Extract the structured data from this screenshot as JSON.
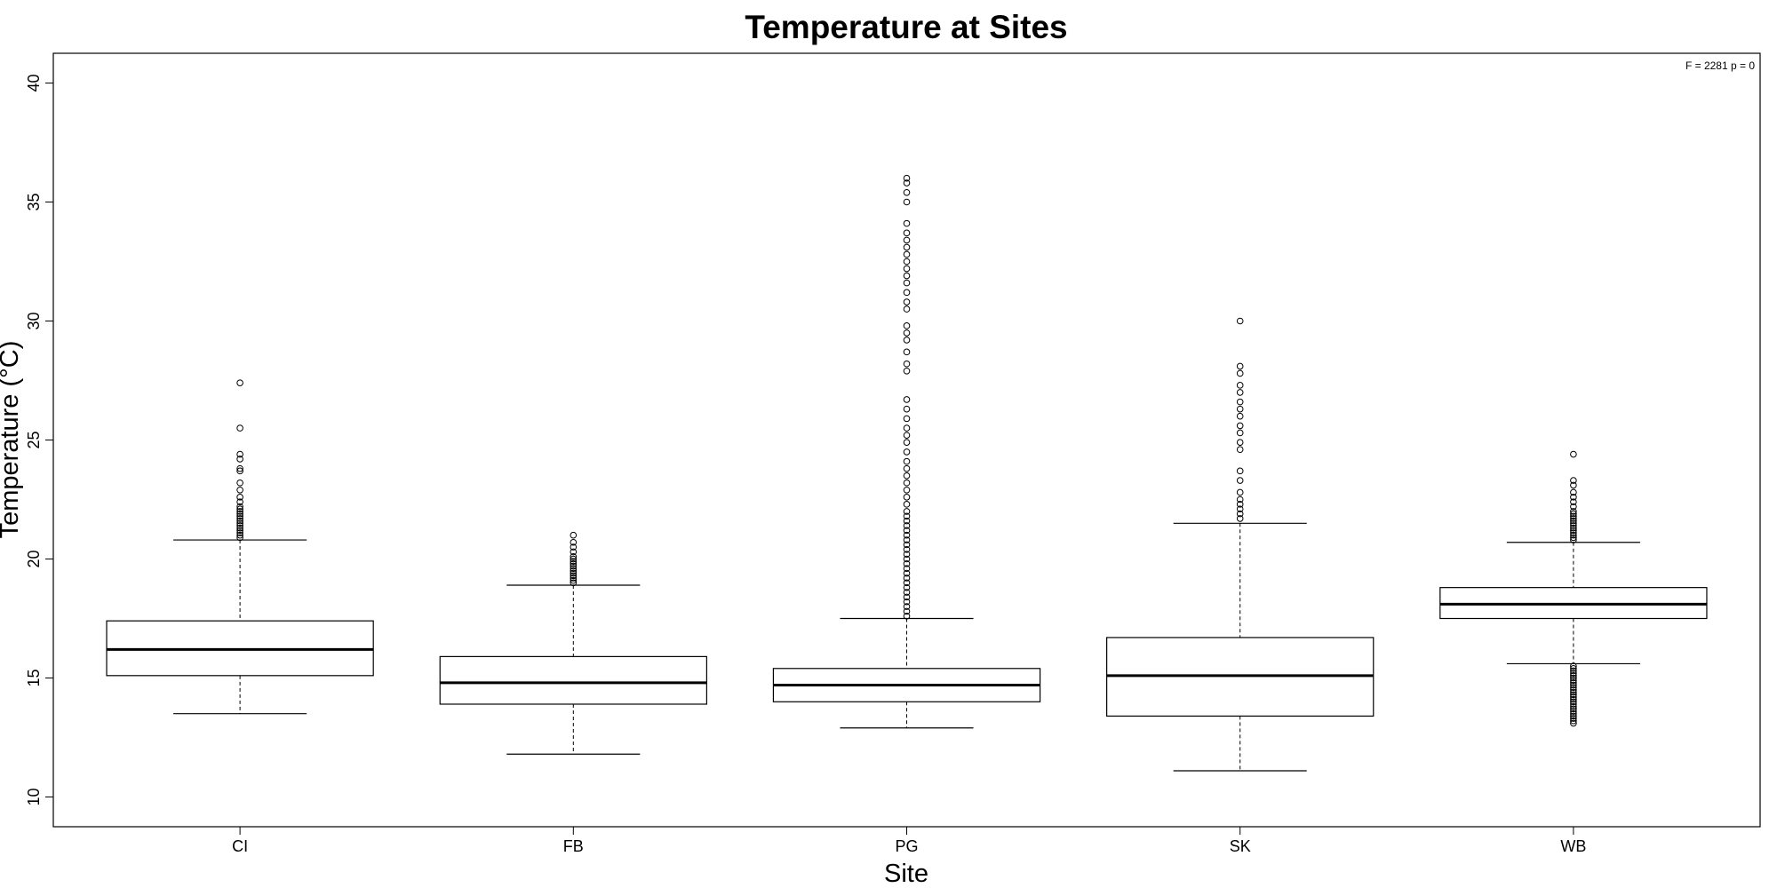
{
  "chart_data": {
    "type": "box",
    "title": "Temperature at Sites",
    "xlabel": "Site",
    "ylabel": "Temperature (°C)",
    "annotation": "F = 2281 p = 0",
    "ylim": [
      8.75,
      41.25
    ],
    "yticks": [
      10,
      15,
      20,
      25,
      30,
      35,
      40
    ],
    "categories": [
      "CI",
      "FB",
      "PG",
      "SK",
      "WB"
    ],
    "boxes": [
      {
        "site": "CI",
        "whisker_low": 13.5,
        "q1": 15.1,
        "median": 16.2,
        "q3": 17.4,
        "whisker_high": 20.8,
        "outliers": [
          20.9,
          21.0,
          21.1,
          21.2,
          21.3,
          21.4,
          21.5,
          21.6,
          21.7,
          21.8,
          21.9,
          22.0,
          22.1,
          22.2,
          22.4,
          22.6,
          22.9,
          23.2,
          23.7,
          23.8,
          24.2,
          24.4,
          25.5,
          27.4
        ]
      },
      {
        "site": "FB",
        "whisker_low": 11.8,
        "q1": 13.9,
        "median": 14.8,
        "q3": 15.9,
        "whisker_high": 18.9,
        "outliers": [
          19.0,
          19.1,
          19.2,
          19.3,
          19.4,
          19.5,
          19.6,
          19.7,
          19.8,
          19.9,
          20.0,
          20.1,
          20.3,
          20.5,
          20.7,
          21.0
        ]
      },
      {
        "site": "PG",
        "whisker_low": 12.9,
        "q1": 14.0,
        "median": 14.7,
        "q3": 15.4,
        "whisker_high": 17.5,
        "outliers": [
          17.6,
          17.8,
          18.0,
          18.2,
          18.4,
          18.6,
          18.8,
          19.0,
          19.2,
          19.4,
          19.6,
          19.8,
          20.0,
          20.2,
          20.4,
          20.6,
          20.8,
          21.0,
          21.2,
          21.4,
          21.6,
          21.8,
          22.0,
          22.3,
          22.6,
          22.9,
          23.2,
          23.5,
          23.8,
          24.1,
          24.5,
          24.9,
          25.2,
          25.5,
          25.9,
          26.3,
          26.7,
          27.9,
          28.2,
          28.7,
          29.2,
          29.5,
          29.8,
          30.5,
          30.8,
          31.2,
          31.6,
          31.9,
          32.2,
          32.5,
          32.8,
          33.1,
          33.4,
          33.7,
          34.1,
          35.0,
          35.4,
          35.8,
          36.0
        ]
      },
      {
        "site": "SK",
        "whisker_low": 11.1,
        "q1": 13.4,
        "median": 15.1,
        "q3": 16.7,
        "whisker_high": 21.5,
        "outliers": [
          21.7,
          21.9,
          22.1,
          22.3,
          22.5,
          22.8,
          23.3,
          23.7,
          24.6,
          24.9,
          25.3,
          25.6,
          26.0,
          26.3,
          26.6,
          27.0,
          27.3,
          27.8,
          28.1,
          30.0
        ]
      },
      {
        "site": "WB",
        "whisker_low": 15.6,
        "q1": 17.5,
        "median": 18.1,
        "q3": 18.8,
        "whisker_high": 20.7,
        "outliers": [
          13.1,
          13.2,
          13.3,
          13.4,
          13.5,
          13.6,
          13.7,
          13.8,
          13.9,
          14.0,
          14.1,
          14.2,
          14.3,
          14.4,
          14.5,
          14.6,
          14.7,
          14.8,
          14.9,
          15.0,
          15.1,
          15.2,
          15.3,
          15.4,
          15.5,
          20.8,
          20.9,
          21.0,
          21.1,
          21.2,
          21.3,
          21.4,
          21.5,
          21.6,
          21.7,
          21.8,
          21.9,
          22.0,
          22.2,
          22.4,
          22.6,
          22.8,
          23.1,
          23.3,
          24.4
        ]
      }
    ]
  }
}
